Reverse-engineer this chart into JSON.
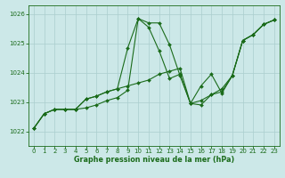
{
  "bg_color": "#cce8e8",
  "grid_color": "#aacece",
  "line_color": "#1a6b1a",
  "marker_color": "#1a6b1a",
  "xlabel": "Graphe pression niveau de la mer (hPa)",
  "xlabel_color": "#1a6b1a",
  "tick_color": "#1a6b1a",
  "spine_color": "#1a6b1a",
  "ylim": [
    1021.5,
    1026.3
  ],
  "xlim": [
    -0.5,
    23.5
  ],
  "yticks": [
    1022,
    1023,
    1024,
    1025,
    1026
  ],
  "xticks": [
    0,
    1,
    2,
    3,
    4,
    5,
    6,
    7,
    8,
    9,
    10,
    11,
    12,
    13,
    14,
    15,
    16,
    17,
    18,
    19,
    20,
    21,
    22,
    23
  ],
  "series": [
    [
      1022.1,
      1022.6,
      1022.75,
      1022.75,
      1022.75,
      1022.8,
      1022.9,
      1023.05,
      1023.15,
      1023.4,
      1025.85,
      1025.7,
      1025.7,
      1024.95,
      1023.9,
      1022.95,
      1022.9,
      1023.25,
      1023.45,
      1023.9,
      1025.1,
      1025.3,
      1025.65,
      1025.8
    ],
    [
      1022.1,
      1022.6,
      1022.75,
      1022.75,
      1022.75,
      1023.1,
      1023.2,
      1023.35,
      1023.45,
      1024.85,
      1025.85,
      1025.55,
      1024.75,
      1023.8,
      1023.95,
      1022.95,
      1023.55,
      1023.95,
      1023.3,
      1023.9,
      1025.1,
      1025.3,
      1025.65,
      1025.8
    ],
    [
      1022.1,
      1022.6,
      1022.75,
      1022.75,
      1022.75,
      1023.1,
      1023.2,
      1023.35,
      1023.45,
      1023.55,
      1023.65,
      1023.75,
      1023.95,
      1024.05,
      1024.15,
      1022.95,
      1023.05,
      1023.25,
      1023.35,
      1023.9,
      1025.1,
      1025.3,
      1025.65,
      1025.8
    ]
  ],
  "xlabel_fontsize": 5.8,
  "xlabel_fontweight": "bold",
  "tick_fontsize": 5.0,
  "linewidth": 0.8,
  "markersize": 2.0
}
